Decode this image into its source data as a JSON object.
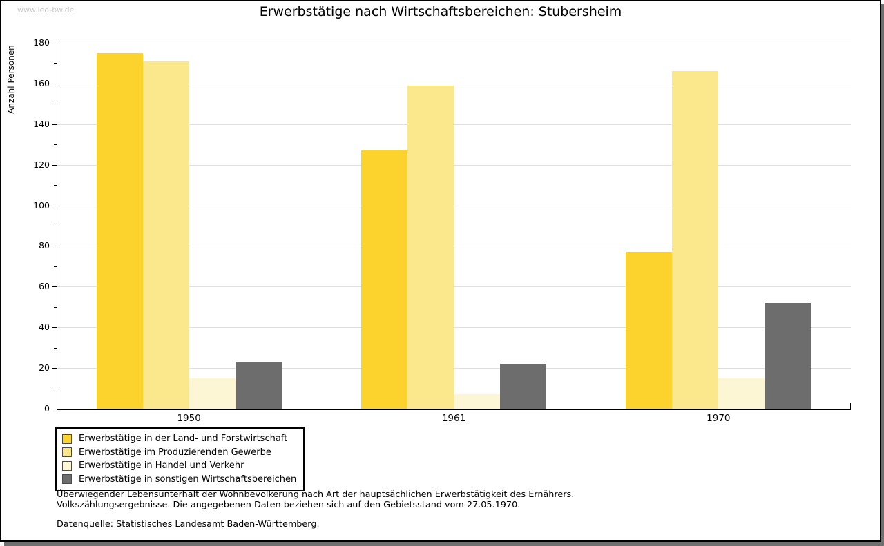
{
  "watermark": "www.leo-bw.de",
  "title": "Erwerbstätige nach Wirtschaftsbereichen: Stubersheim",
  "chart_data": {
    "type": "bar",
    "title": "Erwerbstätige nach Wirtschaftsbereichen: Stubersheim",
    "xlabel": "",
    "ylabel": "Anzahl Personen",
    "categories": [
      "1950",
      "1961",
      "1970"
    ],
    "series": [
      {
        "name": "Erwerbstätige in der Land- und Forstwirtschaft",
        "color": "#FCD32D",
        "values": [
          175,
          127,
          77
        ]
      },
      {
        "name": "Erwerbstätige im Produzierenden Gewerbe",
        "color": "#FCE88C",
        "values": [
          171,
          159,
          166
        ]
      },
      {
        "name": "Erwerbstätige in Handel und Verkehr",
        "color": "#FDF6D5",
        "values": [
          15,
          7,
          15
        ]
      },
      {
        "name": "Erwerbstätige in sonstigen Wirtschaftsbereichen",
        "color": "#6D6D6D",
        "values": [
          23,
          22,
          52
        ]
      }
    ],
    "ylim": [
      0,
      180
    ],
    "ytick_step": 20,
    "yminor_step": 10,
    "grid": true,
    "legend_position": "bottom-left"
  },
  "notes": {
    "line1": "Überwiegender Lebensunterhalt der Wohnbevölkerung nach Art der hauptsächlichen Erwerbstätigkeit des Ernährers.",
    "line2": "Volkszählungsergebnisse. Die angegebenen Daten beziehen sich auf den Gebietsstand vom 27.05.1970.",
    "source": "Datenquelle: Statistisches Landesamt Baden-Württemberg."
  },
  "colors": {
    "gridline": "#E0E0E0",
    "axis": "#000000",
    "watermark_text": "#C9C9C9",
    "window_shadow": "#6F6F6F",
    "background": "#FFFFFF"
  }
}
